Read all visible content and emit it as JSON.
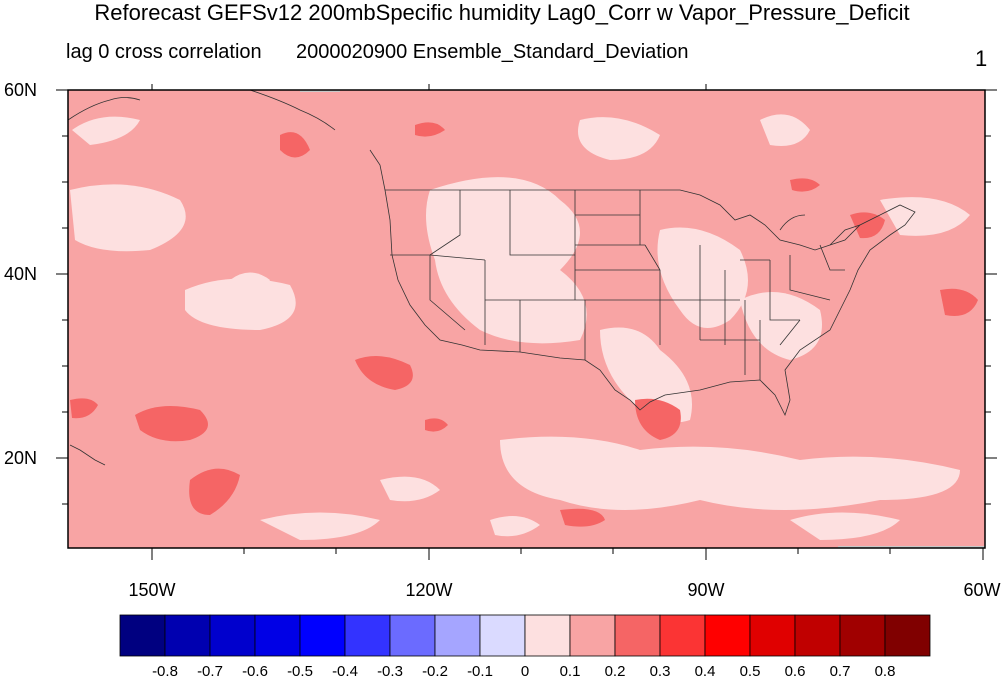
{
  "title": "Reforecast GEFSv12 200mbSpecific humidity Lag0_Corr w Vapor_Pressure_Deficit",
  "left_string": "lag 0 cross correlation",
  "center_string": "2000020900 Ensemble_Standard_Deviation",
  "right_string": "1",
  "map": {
    "lat_labels": [
      "60N",
      "40N",
      "20N"
    ],
    "lon_labels": [
      "150W",
      "120W",
      "90W",
      "60W"
    ],
    "base_color": "#f8a4a4",
    "light_color": "#fde0e0",
    "strong_color": "#f56565"
  },
  "colorbar": {
    "colors": [
      "#000080",
      "#0000b0",
      "#0000cd",
      "#0000e6",
      "#0000ff",
      "#3333ff",
      "#6b6bff",
      "#a5a5ff",
      "#dadaff",
      "#fde0e0",
      "#f8a4a4",
      "#f56565",
      "#fb3434",
      "#ff0000",
      "#e00000",
      "#c00000",
      "#a00000",
      "#800000"
    ],
    "labels": [
      "-0.8",
      "-0.7",
      "-0.6",
      "-0.5",
      "-0.4",
      "-0.3",
      "-0.2",
      "-0.1",
      "0",
      "0.1",
      "0.2",
      "0.3",
      "0.4",
      "0.5",
      "0.6",
      "0.7",
      "0.8"
    ]
  }
}
